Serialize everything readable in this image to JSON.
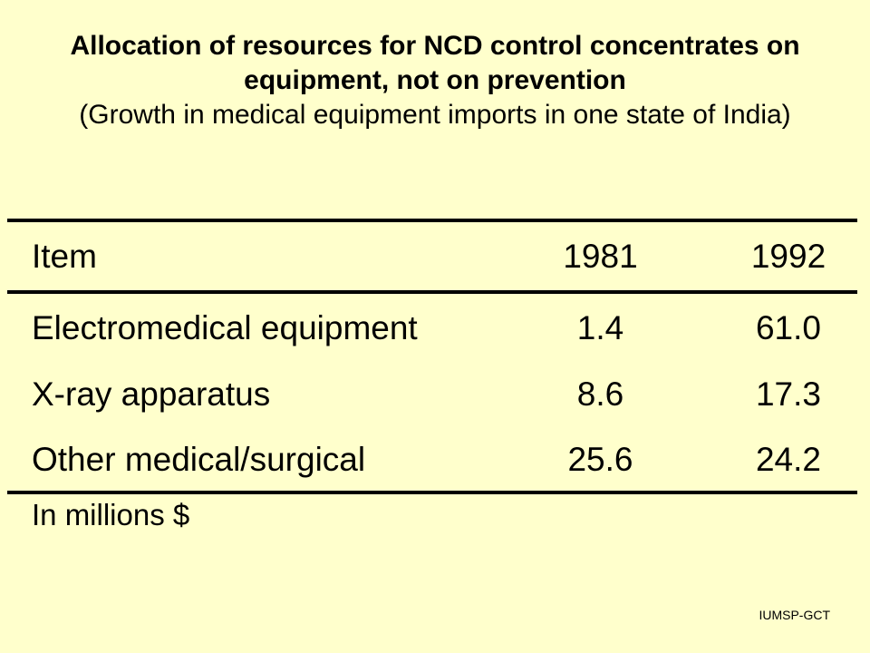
{
  "slide": {
    "title": "Allocation of resources for NCD control concentrates on equipment, not on prevention",
    "subtitle": "(Growth in medical equipment imports in one state of India)",
    "units_note": "In millions $",
    "footer": "IUMSP-GCT"
  },
  "table": {
    "headers": [
      "Item",
      "1981",
      "1992"
    ],
    "rows": [
      [
        "Electromedical equipment",
        "1.4",
        "61.0"
      ],
      [
        "X-ray apparatus",
        "8.6",
        "17.3"
      ],
      [
        "Other medical/surgical",
        "25.6",
        "24.2"
      ]
    ]
  }
}
